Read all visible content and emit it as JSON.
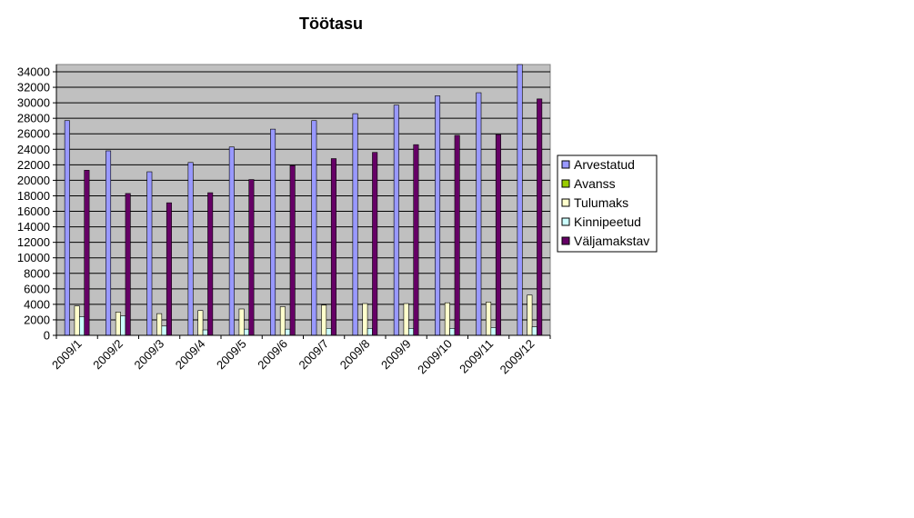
{
  "chart_data": {
    "type": "bar",
    "title": "Töötasu",
    "xlabel": "",
    "ylabel": "",
    "ylim": [
      0,
      34000
    ],
    "ytick_step": 2000,
    "grid": true,
    "legend_position": "right",
    "categories": [
      "2009/1",
      "2009/2",
      "2009/3",
      "2009/4",
      "2009/5",
      "2009/6",
      "2009/7",
      "2009/8",
      "2009/9",
      "2009/10",
      "2009/11",
      "2009/12"
    ],
    "series": [
      {
        "name": "Arvestatud",
        "color": "#9999ff",
        "values": [
          27700,
          23800,
          21100,
          22300,
          24300,
          26600,
          27700,
          28600,
          29700,
          30900,
          31300,
          35200
        ]
      },
      {
        "name": "Avanss",
        "color": "#99cc00",
        "values": [
          0,
          0,
          0,
          0,
          0,
          0,
          0,
          0,
          0,
          0,
          0,
          0
        ]
      },
      {
        "name": "Tulumaks",
        "color": "#ffffcc",
        "values": [
          3800,
          3000,
          2800,
          3200,
          3400,
          3700,
          3900,
          4100,
          4100,
          4200,
          4300,
          5200
        ]
      },
      {
        "name": "Kinnipeetud",
        "color": "#ccffff",
        "values": [
          2400,
          2500,
          1200,
          700,
          800,
          800,
          900,
          900,
          900,
          900,
          1000,
          1100
        ]
      },
      {
        "name": "Väljamakstav",
        "color": "#660066",
        "values": [
          21300,
          18300,
          17100,
          18400,
          20100,
          21900,
          22800,
          23600,
          24600,
          25800,
          25900,
          30500
        ]
      }
    ]
  }
}
